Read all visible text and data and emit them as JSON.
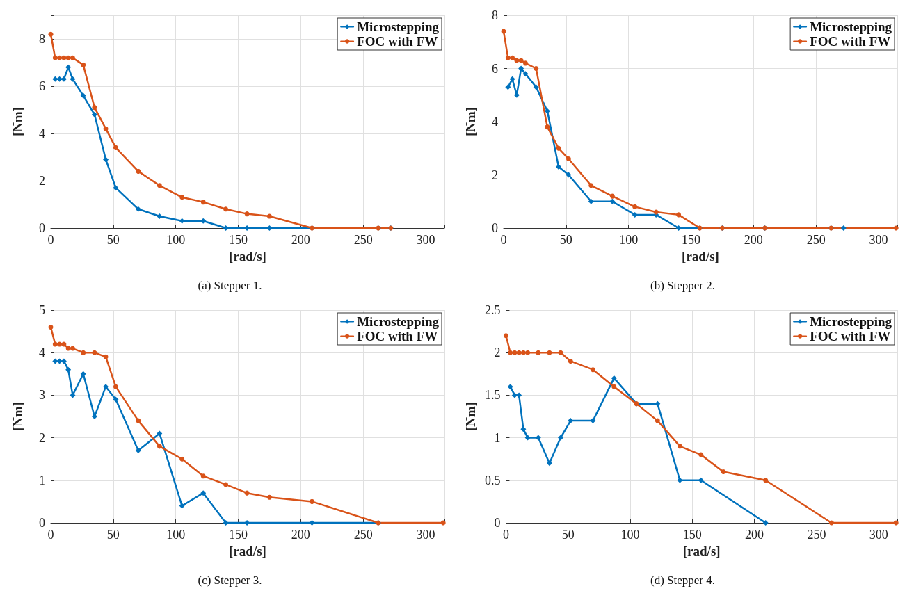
{
  "chart_data": [
    {
      "type": "line",
      "title": "(a) Stepper 1.",
      "xlabel": "[rad/s]",
      "ylabel": "[Nm]",
      "xlim": [
        0,
        315
      ],
      "xticks": [
        0,
        50,
        100,
        150,
        200,
        250,
        300
      ],
      "ylim": [
        0,
        9
      ],
      "yticks": [
        0,
        2,
        4,
        6,
        8
      ],
      "grid": true,
      "legend": "top right",
      "line_style": "solid",
      "series": [
        {
          "name": "Microstepping",
          "color": "#0072bd",
          "marker": "diamond",
          "x": [
            3.5,
            7,
            10.5,
            14,
            17.5,
            26,
            35,
            44,
            52,
            70,
            87,
            105,
            122,
            140,
            157,
            175,
            209,
            262,
            272
          ],
          "values": [
            6.3,
            6.3,
            6.3,
            6.8,
            6.3,
            5.6,
            4.8,
            2.9,
            1.7,
            0.8,
            0.5,
            0.3,
            0.3,
            0,
            0,
            0,
            0,
            0,
            0
          ]
        },
        {
          "name": "FOC with FW",
          "color": "#d95319",
          "marker": "circle",
          "x": [
            0,
            3.5,
            7,
            10.5,
            14,
            17.5,
            26,
            35,
            44,
            52,
            70,
            87,
            105,
            122,
            140,
            157,
            175,
            209,
            262,
            272
          ],
          "values": [
            8.2,
            7.2,
            7.2,
            7.2,
            7.2,
            7.2,
            6.9,
            5.1,
            4.2,
            3.4,
            2.4,
            1.8,
            1.3,
            1.1,
            0.8,
            0.6,
            0.5,
            0,
            0,
            0
          ]
        }
      ]
    },
    {
      "type": "line",
      "title": "(b) Stepper 2.",
      "xlabel": "[rad/s]",
      "ylabel": "[Nm]",
      "xlim": [
        0,
        315
      ],
      "xticks": [
        0,
        50,
        100,
        150,
        200,
        250,
        300
      ],
      "ylim": [
        0,
        8
      ],
      "yticks": [
        0,
        2,
        4,
        6,
        8
      ],
      "grid": true,
      "legend": "top right",
      "line_style": "solid",
      "series": [
        {
          "name": "Microstepping",
          "color": "#0072bd",
          "marker": "diamond",
          "x": [
            3.5,
            7,
            10.5,
            14,
            17.5,
            26,
            35,
            44,
            52,
            70,
            87,
            105,
            122,
            140,
            157,
            175,
            209,
            262,
            272
          ],
          "values": [
            5.3,
            5.6,
            5.0,
            6.0,
            5.8,
            5.3,
            4.4,
            2.3,
            2.0,
            1.0,
            1.0,
            0.5,
            0.5,
            0,
            0,
            0,
            0,
            0,
            0
          ]
        },
        {
          "name": "FOC with FW",
          "color": "#d95319",
          "marker": "circle",
          "x": [
            0,
            3.5,
            7,
            10.5,
            14,
            17.5,
            26,
            35,
            44,
            52,
            70,
            87,
            105,
            122,
            140,
            157,
            175,
            209,
            262,
            314
          ],
          "values": [
            7.4,
            6.4,
            6.4,
            6.3,
            6.3,
            6.2,
            6.0,
            3.8,
            3.0,
            2.6,
            1.6,
            1.2,
            0.8,
            0.6,
            0.5,
            0,
            0,
            0,
            0,
            0
          ]
        }
      ]
    },
    {
      "type": "line",
      "title": "(c) Stepper 3.",
      "xlabel": "[rad/s]",
      "ylabel": "[Nm]",
      "xlim": [
        0,
        315
      ],
      "xticks": [
        0,
        50,
        100,
        150,
        200,
        250,
        300
      ],
      "ylim": [
        0,
        5
      ],
      "yticks": [
        0,
        1,
        2,
        3,
        4,
        5
      ],
      "grid": true,
      "legend": "top right",
      "line_style": "solid",
      "series": [
        {
          "name": "Microstepping",
          "color": "#0072bd",
          "marker": "diamond",
          "x": [
            3.5,
            7,
            10.5,
            14,
            17.5,
            26,
            35,
            44,
            52,
            70,
            87,
            105,
            122,
            140,
            157,
            209,
            262
          ],
          "values": [
            3.8,
            3.8,
            3.8,
            3.6,
            3.0,
            3.5,
            2.5,
            3.2,
            2.9,
            1.7,
            2.1,
            0.4,
            0.7,
            0,
            0,
            0,
            0
          ]
        },
        {
          "name": "FOC with FW",
          "color": "#d95319",
          "marker": "circle",
          "x": [
            0,
            3.5,
            7,
            10.5,
            14,
            17.5,
            26,
            35,
            44,
            52,
            70,
            87,
            105,
            122,
            140,
            157,
            175,
            209,
            262,
            314
          ],
          "values": [
            4.6,
            4.2,
            4.2,
            4.2,
            4.1,
            4.1,
            4.0,
            4.0,
            3.9,
            3.2,
            2.4,
            1.8,
            1.5,
            1.1,
            0.9,
            0.7,
            0.6,
            0.5,
            0,
            0
          ]
        }
      ]
    },
    {
      "type": "line",
      "title": "(d) Stepper 4.",
      "xlabel": "[rad/s]",
      "ylabel": "[Nm]",
      "xlim": [
        0,
        315
      ],
      "xticks": [
        0,
        50,
        100,
        150,
        200,
        250,
        300
      ],
      "ylim": [
        0,
        2.5
      ],
      "yticks": [
        0,
        0.5,
        1,
        1.5,
        2,
        2.5
      ],
      "grid": true,
      "legend": "top right",
      "line_style": "solid",
      "series": [
        {
          "name": "Microstepping",
          "color": "#0072bd",
          "marker": "diamond",
          "x": [
            3.5,
            7,
            10.5,
            14,
            17.5,
            26,
            35,
            44,
            52,
            70,
            87,
            105,
            122,
            140,
            157,
            209
          ],
          "values": [
            1.6,
            1.5,
            1.5,
            1.1,
            1.0,
            1.0,
            0.7,
            1.0,
            1.2,
            1.2,
            1.7,
            1.4,
            1.4,
            0.5,
            0.5,
            0
          ]
        },
        {
          "name": "FOC with FW",
          "color": "#d95319",
          "marker": "circle",
          "x": [
            0,
            3.5,
            7,
            10.5,
            14,
            17.5,
            26,
            35,
            44,
            52,
            70,
            87,
            105,
            122,
            140,
            157,
            175,
            209,
            262,
            314
          ],
          "values": [
            2.2,
            2.0,
            2.0,
            2.0,
            2.0,
            2.0,
            2.0,
            2.0,
            2.0,
            1.9,
            1.8,
            1.6,
            1.4,
            1.2,
            0.9,
            0.8,
            0.6,
            0.5,
            0,
            0
          ]
        }
      ]
    }
  ]
}
